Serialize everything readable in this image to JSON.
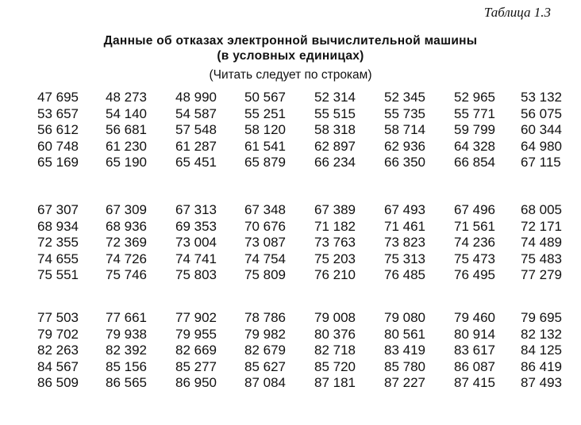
{
  "table_label": "Таблица 1.3",
  "title": {
    "line1": "Данные об отказах электронной вычислительной машины",
    "line2": "(в условных единицах)"
  },
  "note": "(Читать следует по строкам)",
  "blocks": [
    [
      [
        "47 695",
        "48 273",
        "48 990",
        "50 567",
        "52 314",
        "52 345",
        "52 965",
        "53 132"
      ],
      [
        "53 657",
        "54 140",
        "54 587",
        "55 251",
        "55 515",
        "55 735",
        "55 771",
        "56 075"
      ],
      [
        "56 612",
        "56 681",
        "57 548",
        "58 120",
        "58 318",
        "58 714",
        "59 799",
        "60 344"
      ],
      [
        "60 748",
        "61 230",
        "61 287",
        "61 541",
        "62 897",
        "62 936",
        "64 328",
        "64 980"
      ],
      [
        "65 169",
        "65 190",
        "65 451",
        "65 879",
        "66 234",
        "66 350",
        "66 854",
        "67 115"
      ]
    ],
    [
      [
        "67 307",
        "67 309",
        "67 313",
        "67 348",
        "67 389",
        "67 493",
        "67 496",
        "68 005"
      ],
      [
        "68 934",
        "68 936",
        "69 353",
        "70 676",
        "71 182",
        "71 461",
        "71 561",
        "72 171"
      ],
      [
        "72 355",
        "72 369",
        "73 004",
        "73 087",
        "73 763",
        "73 823",
        "74 236",
        "74 489"
      ],
      [
        "74 655",
        "74 726",
        "74 741",
        "74 754",
        "75 203",
        "75 313",
        "75 473",
        "75 483"
      ],
      [
        "75 551",
        "75 746",
        "75 803",
        "75 809",
        "76 210",
        "76 485",
        "76 495",
        "77 279"
      ]
    ],
    [
      [
        "77 503",
        "77 661",
        "77 902",
        "78 786",
        "79 008",
        "79 080",
        "79 460",
        "79 695"
      ],
      [
        "79 702",
        "79 938",
        "79 955",
        "79 982",
        "80 376",
        "80 561",
        "80 914",
        "82 132"
      ],
      [
        "82 263",
        "82 392",
        "82 669",
        "82 679",
        "82 718",
        "83 419",
        "83 617",
        "84 125"
      ],
      [
        "84 567",
        "85 156",
        "85 277",
        "85 627",
        "85 720",
        "85 780",
        "86 087",
        "86 419"
      ],
      [
        "86 509",
        "86 565",
        "86 950",
        "87 084",
        "87 181",
        "87 227",
        "87 415",
        "87 493"
      ]
    ]
  ]
}
